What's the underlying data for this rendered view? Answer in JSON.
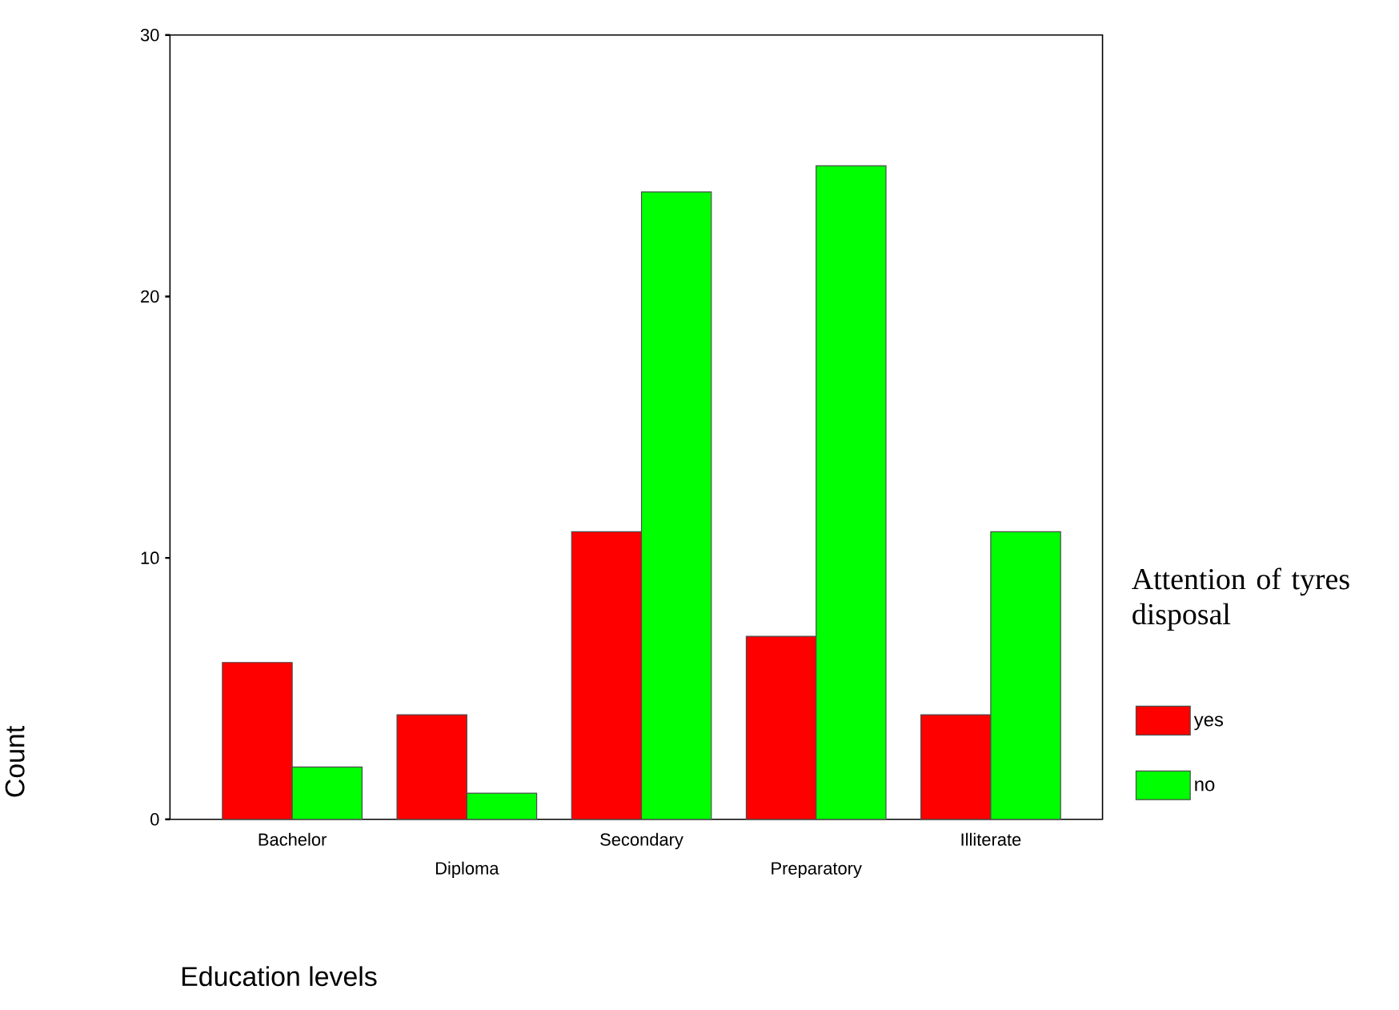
{
  "chart_data": {
    "type": "bar",
    "xlabel": "Education levels",
    "ylabel": "Count",
    "legend_title": "Attention of tyres disposal",
    "categories": [
      "Bachelor",
      "Diploma",
      "Secondary",
      "Preparatory",
      "Illiterate"
    ],
    "series": [
      {
        "name": "yes",
        "color": "#ff0000",
        "values": [
          6,
          4,
          11,
          7,
          4
        ]
      },
      {
        "name": "no",
        "color": "#00ff00",
        "values": [
          2,
          1,
          24,
          25,
          11
        ]
      }
    ],
    "ylim": [
      0,
      30
    ],
    "yticks": [
      0,
      10,
      20,
      30
    ],
    "grid": false,
    "legend": "right"
  }
}
